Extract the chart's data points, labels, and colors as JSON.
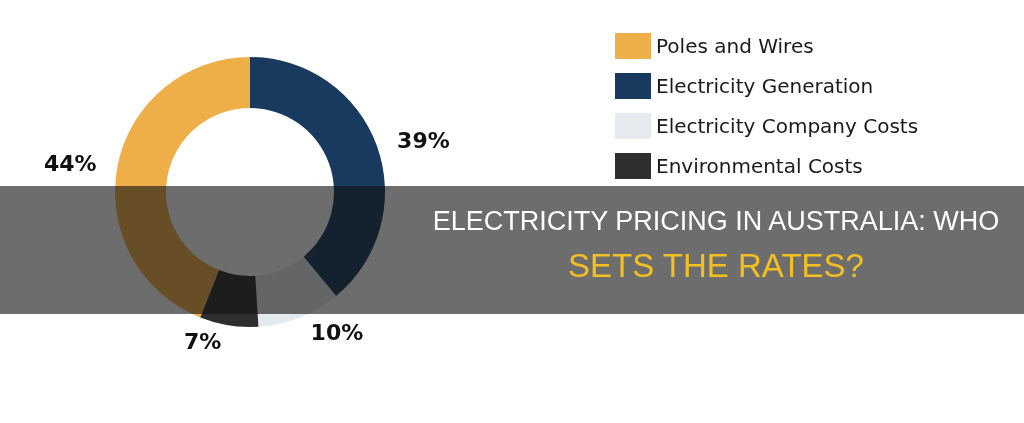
{
  "chart_data": {
    "type": "donut",
    "title": "ELECTRICITY PRICING IN AUSTRALIA: WHO",
    "subtitle": "SETS THE RATES?",
    "categories": [
      "Poles and Wires",
      "Electricity Generation",
      "Electricity Company Costs",
      "Environmental Costs"
    ],
    "values": [
      44,
      39,
      10,
      7
    ],
    "colors": [
      "#eeae48",
      "#173a5e",
      "#e4eaee",
      "#2e2e2e"
    ],
    "value_labels": [
      "44%",
      "39%",
      "10%",
      "7%"
    ],
    "legend": "right"
  }
}
